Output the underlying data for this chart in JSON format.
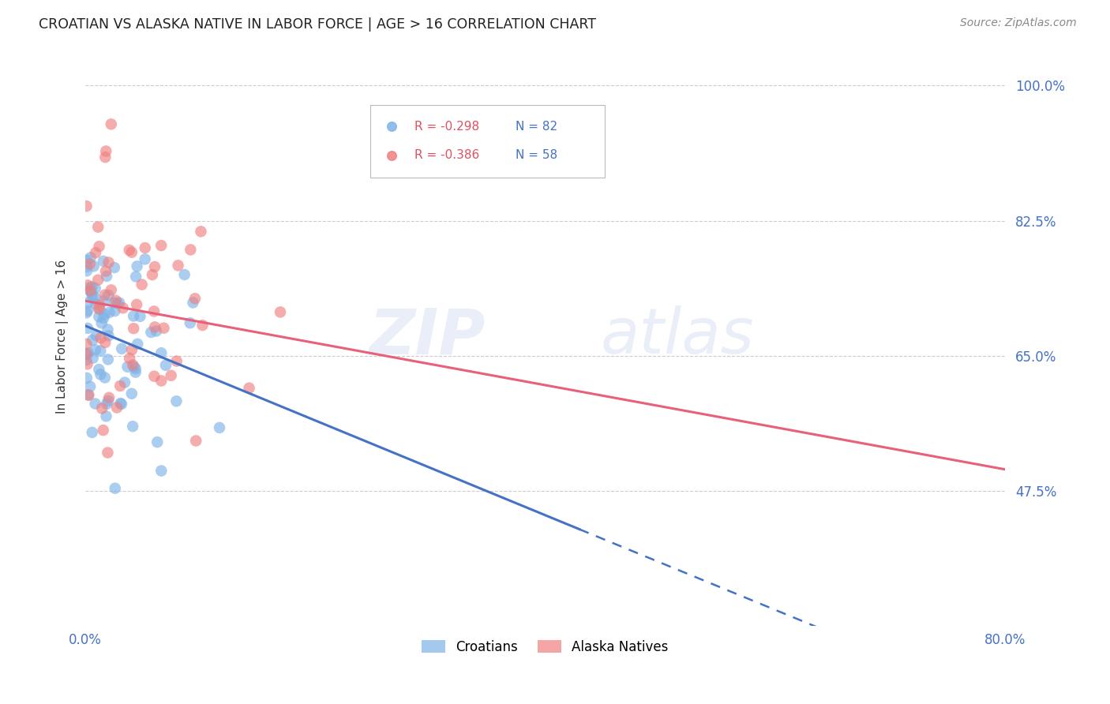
{
  "title": "CROATIAN VS ALASKA NATIVE IN LABOR FORCE | AGE > 16 CORRELATION CHART",
  "source": "Source: ZipAtlas.com",
  "ylabel": "In Labor Force | Age > 16",
  "ytick_labels": [
    "100.0%",
    "82.5%",
    "65.0%",
    "47.5%"
  ],
  "ytick_values": [
    1.0,
    0.825,
    0.65,
    0.475
  ],
  "xmin": 0.0,
  "xmax": 0.8,
  "ymin": 0.3,
  "ymax": 1.05,
  "croatian_color": "#7EB3E8",
  "alaska_color": "#F08080",
  "croatian_line_color": "#4472C4",
  "alaska_line_color": "#E8607A",
  "croatian_label": "Croatians",
  "alaska_label": "Alaska Natives",
  "watermark_zip": "ZIP",
  "watermark_atlas": "atlas",
  "grid_color": "#CCCCCC",
  "title_color": "#222222",
  "source_color": "#888888",
  "tick_color": "#4472C4",
  "ylabel_color": "#333333"
}
